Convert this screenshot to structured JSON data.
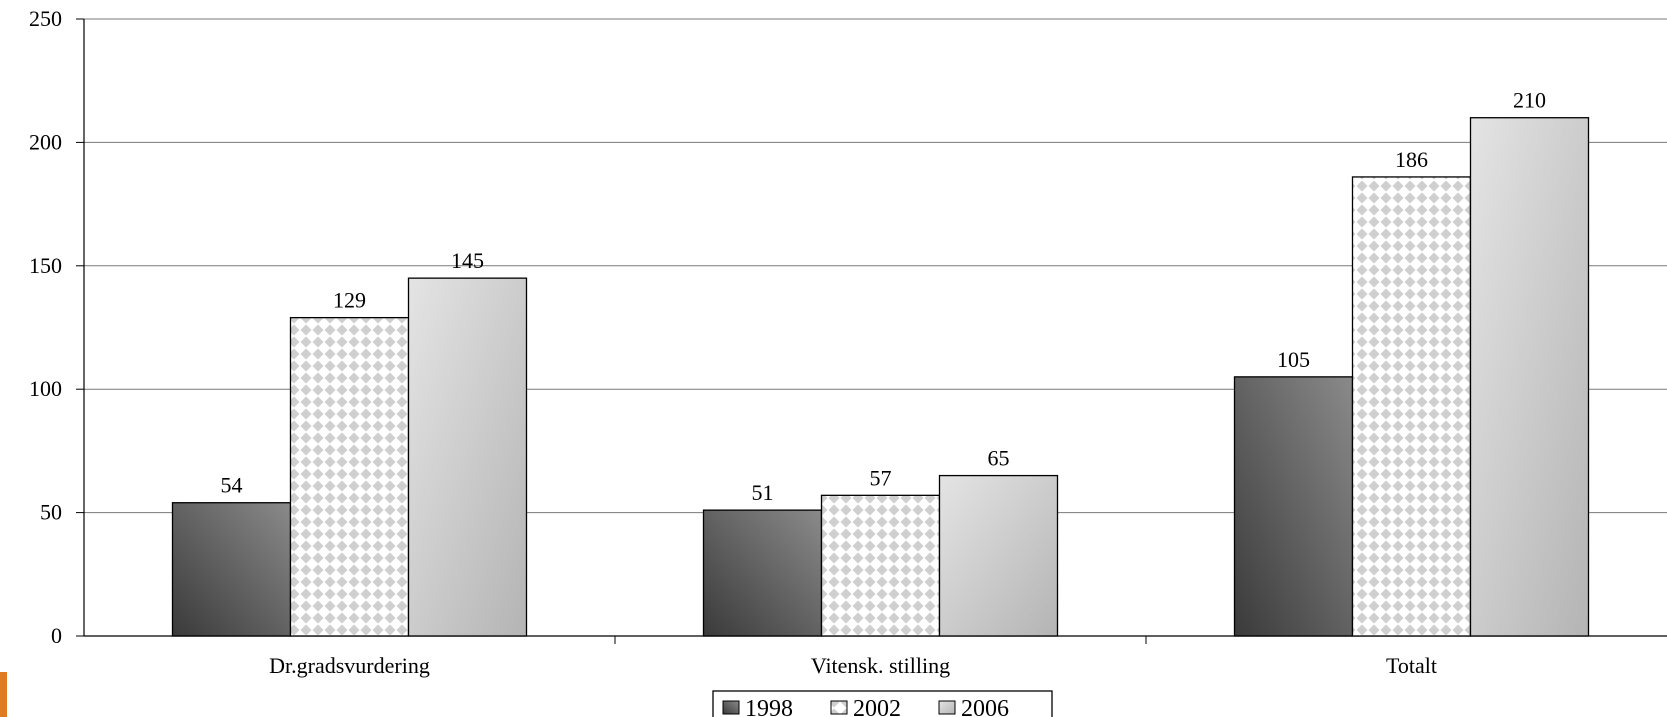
{
  "chart_data": {
    "type": "bar",
    "title": "",
    "xlabel": "",
    "ylabel": "",
    "categories": [
      "Dr.gradsvurdering",
      "Vitensk. stilling",
      "Totalt"
    ],
    "series": [
      {
        "name": "1998",
        "values": [
          54,
          51,
          105
        ]
      },
      {
        "name": "2002",
        "values": [
          129,
          57,
          186
        ]
      },
      {
        "name": "2006",
        "values": [
          145,
          65,
          210
        ]
      }
    ],
    "ylim": [
      0,
      250
    ],
    "yticks": [
      "0",
      "50",
      "100",
      "150",
      "200",
      "250"
    ],
    "grid": true,
    "legend_position": "bottom-center",
    "colors": {
      "1998": "#555555",
      "2002": "#d0d0d0",
      "2006": "#cccccc",
      "accent": "#e07b1f"
    }
  }
}
